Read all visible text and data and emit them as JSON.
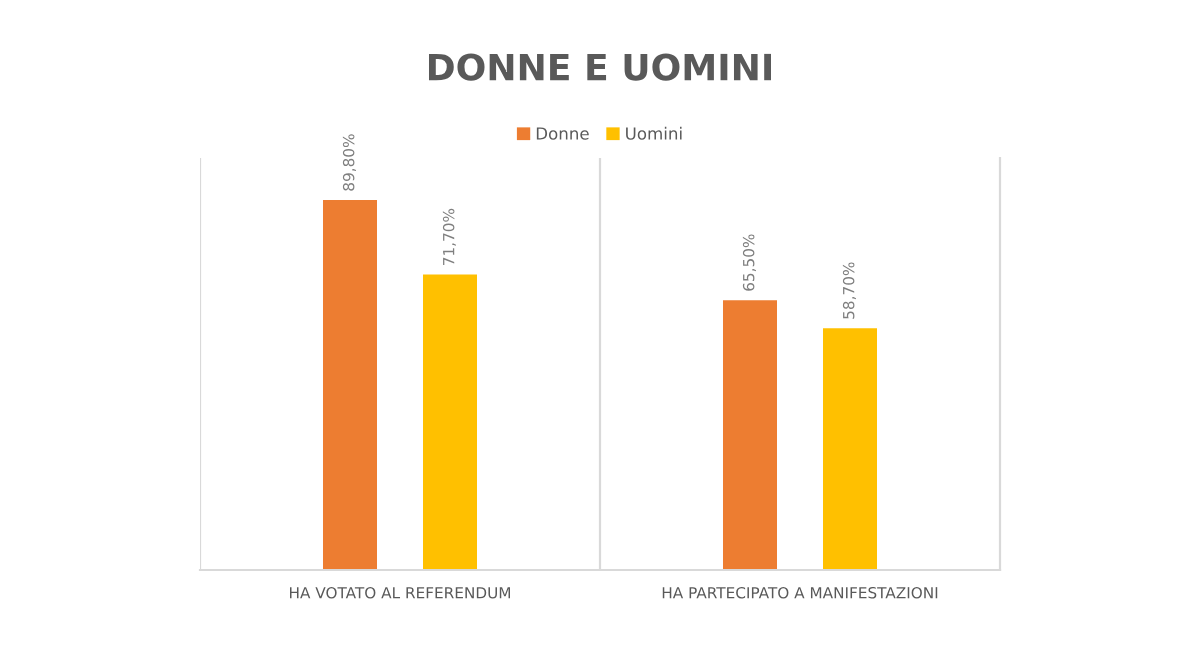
{
  "chart_data": {
    "type": "bar",
    "title": "DONNE E UOMINI",
    "categories": [
      "HA VOTATO AL REFERENDUM",
      "HA PARTECIPATO A MANIFESTAZIONI"
    ],
    "series": [
      {
        "name": "Donne",
        "color": "#ed7d31",
        "values": [
          89.8,
          65.5
        ],
        "value_labels": [
          "89,80%",
          "65,50%"
        ]
      },
      {
        "name": "Uomini",
        "color": "#ffc000",
        "values": [
          71.7,
          58.7
        ],
        "value_labels": [
          "71,70%",
          "58,70%"
        ]
      }
    ],
    "ylim": [
      0,
      100
    ],
    "tick_labels": "x",
    "grid": false,
    "legend": "top"
  }
}
